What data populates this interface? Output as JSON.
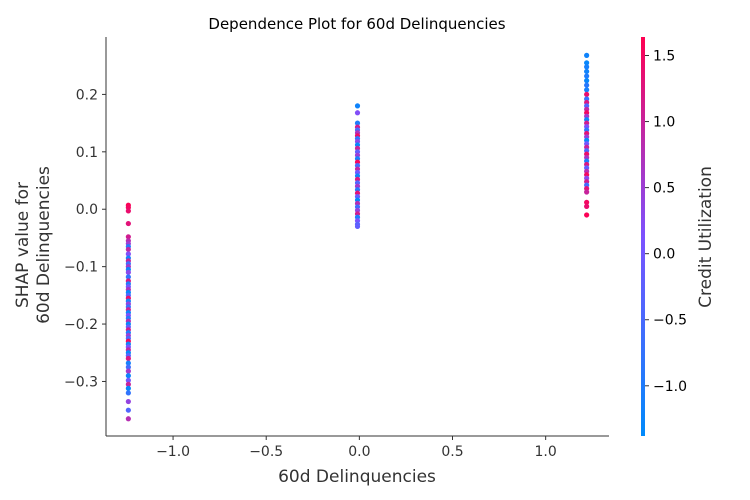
{
  "chart_data": {
    "type": "scatter",
    "title": "Dependence Plot for 60d Delinquencies",
    "xlabel": "60d Delinquencies",
    "ylabel_lines": [
      "SHAP value for",
      "60d Delinquencies"
    ],
    "xlim": [
      -1.36,
      1.34
    ],
    "ylim": [
      -0.395,
      0.3
    ],
    "xticks": [
      -1.0,
      -0.5,
      0.0,
      0.5,
      1.0
    ],
    "xtick_labels": [
      "−1.0",
      "−0.5",
      "0.0",
      "0.5",
      "1.0"
    ],
    "yticks": [
      -0.3,
      -0.2,
      -0.1,
      0.0,
      0.1,
      0.2
    ],
    "ytick_labels": [
      "−0.3",
      "−0.2",
      "−0.1",
      "0.0",
      "0.1",
      "0.2"
    ],
    "colorbar": {
      "label": "Credit Utilization",
      "range": [
        -1.38,
        1.64
      ],
      "ticks": [
        -1.0,
        -0.5,
        0.0,
        0.5,
        1.0,
        1.5
      ],
      "tick_labels": [
        "−1.0",
        "−0.5",
        "0.0",
        "0.5",
        "1.0",
        "1.5"
      ],
      "colors": [
        "#008afb",
        "#7c52ff",
        "#ff0051"
      ]
    },
    "grid": false,
    "series": [
      {
        "name": "x = -1.24",
        "x_value": -1.24,
        "y": [
          0.007,
          0.003,
          -0.003,
          -0.025,
          -0.048,
          -0.055,
          -0.06,
          -0.065,
          -0.07,
          -0.078,
          -0.085,
          -0.09,
          -0.095,
          -0.1,
          -0.105,
          -0.11,
          -0.118,
          -0.125,
          -0.13,
          -0.135,
          -0.14,
          -0.145,
          -0.15,
          -0.155,
          -0.16,
          -0.165,
          -0.17,
          -0.175,
          -0.18,
          -0.185,
          -0.19,
          -0.195,
          -0.2,
          -0.205,
          -0.21,
          -0.215,
          -0.22,
          -0.225,
          -0.23,
          -0.235,
          -0.24,
          -0.245,
          -0.25,
          -0.255,
          -0.26,
          -0.268,
          -0.275,
          -0.282,
          -0.29,
          -0.298,
          -0.305,
          -0.312,
          -0.32,
          -0.335,
          -0.35,
          -0.365
        ],
        "color_values": [
          1.6,
          1.5,
          1.4,
          1.3,
          1.1,
          0.8,
          0.5,
          -0.9,
          0.9,
          0.2,
          -1.1,
          1.0,
          -0.6,
          0.6,
          -1.2,
          0.3,
          -0.8,
          1.2,
          -1.0,
          0.0,
          0.7,
          -1.3,
          -0.4,
          1.4,
          -1.1,
          0.4,
          -0.7,
          1.0,
          -1.2,
          0.2,
          -0.9,
          0.8,
          -1.3,
          -0.2,
          1.1,
          -1.0,
          0.5,
          -0.5,
          1.5,
          -1.2,
          0.1,
          0.9,
          -1.3,
          -0.3,
          1.2,
          -1.1,
          -0.6,
          0.6,
          -1.2,
          0.0,
          1.0,
          -1.3,
          -0.8,
          0.4,
          -0.4,
          0.8
        ]
      },
      {
        "name": "x = -0.01",
        "x_value": -0.01,
        "y": [
          0.18,
          0.168,
          0.15,
          0.143,
          0.138,
          0.133,
          0.128,
          0.123,
          0.118,
          0.112,
          0.106,
          0.1,
          0.094,
          0.088,
          0.082,
          0.076,
          0.07,
          0.064,
          0.058,
          0.052,
          0.046,
          0.04,
          0.034,
          0.028,
          0.022,
          0.016,
          0.01,
          0.004,
          -0.002,
          -0.008,
          -0.014,
          -0.02,
          -0.026,
          -0.03
        ],
        "color_values": [
          -1.2,
          0.2,
          -1.0,
          1.1,
          -0.5,
          0.7,
          1.4,
          -0.8,
          0.3,
          -1.3,
          1.0,
          -0.2,
          0.5,
          -1.1,
          1.5,
          -0.6,
          0.9,
          0.0,
          -1.2,
          1.2,
          -0.4,
          0.6,
          -0.9,
          1.3,
          -0.1,
          -1.3,
          0.8,
          -0.6,
          0.4,
          1.1,
          -1.0,
          0.1,
          -0.3,
          -0.2
        ]
      },
      {
        "name": "x = 1.22",
        "x_value": 1.22,
        "y": [
          0.268,
          0.255,
          0.248,
          0.24,
          0.232,
          0.224,
          0.216,
          0.208,
          0.2,
          0.192,
          0.186,
          0.18,
          0.174,
          0.168,
          0.162,
          0.156,
          0.15,
          0.144,
          0.138,
          0.132,
          0.126,
          0.12,
          0.114,
          0.108,
          0.102,
          0.096,
          0.09,
          0.084,
          0.078,
          0.072,
          0.066,
          0.06,
          0.054,
          0.048,
          0.042,
          0.036,
          0.03,
          0.012,
          0.005,
          -0.01
        ],
        "color_values": [
          -1.2,
          -1.3,
          -1.1,
          -1.2,
          -1.0,
          -1.3,
          -0.9,
          -1.1,
          1.4,
          -0.7,
          1.2,
          -0.4,
          0.9,
          1.5,
          0.6,
          -1.2,
          1.1,
          0.2,
          -0.8,
          1.3,
          0.5,
          -1.3,
          0.0,
          1.0,
          -0.5,
          1.4,
          0.7,
          -1.0,
          1.2,
          -0.2,
          0.8,
          1.5,
          0.3,
          1.1,
          -0.6,
          1.3,
          1.0,
          1.5,
          1.4,
          1.6
        ]
      }
    ]
  }
}
